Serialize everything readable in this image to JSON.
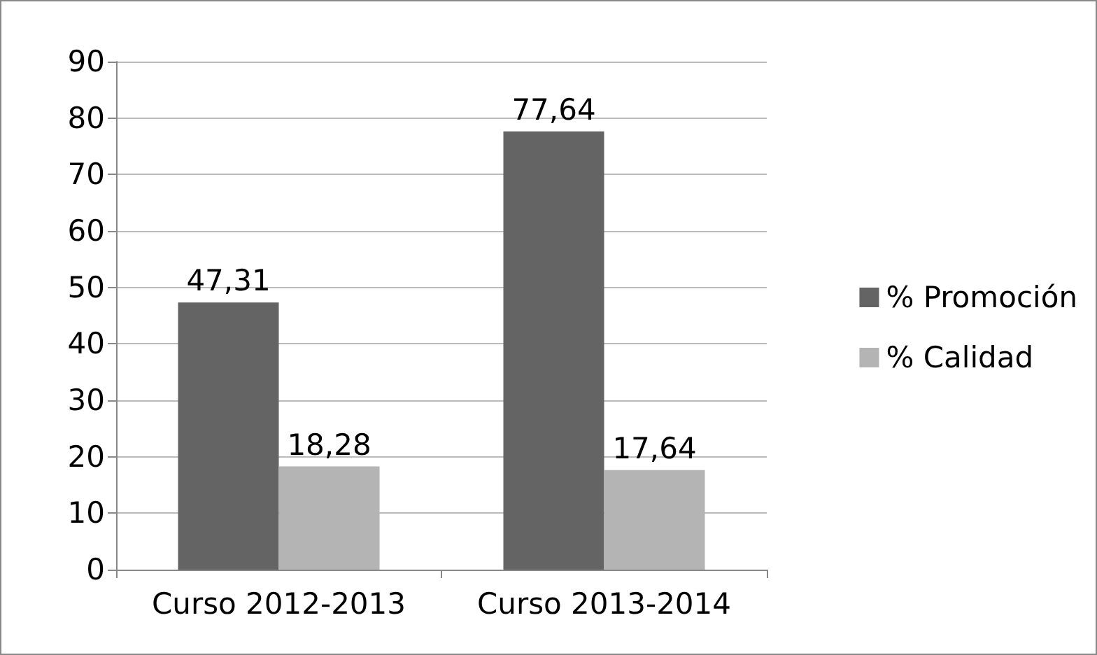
{
  "chart_data": {
    "type": "bar",
    "categories": [
      "Curso 2012-2013",
      "Curso 2013-2014"
    ],
    "series": [
      {
        "name": "% Promoción",
        "color": "#646464",
        "values": [
          47.31,
          77.64
        ],
        "value_labels": [
          "47,31",
          "77,64"
        ]
      },
      {
        "name": "% Calidad",
        "color": "#b4b4b4",
        "values": [
          18.28,
          17.64
        ],
        "value_labels": [
          "18,28",
          "17,64"
        ]
      }
    ],
    "ylim": [
      0,
      90
    ],
    "yticks": [
      0,
      10,
      20,
      30,
      40,
      50,
      60,
      70,
      80,
      90
    ],
    "grid": "y",
    "legend": "right"
  }
}
